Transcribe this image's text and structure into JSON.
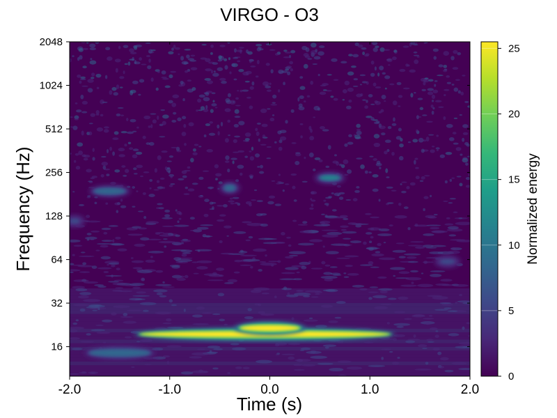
{
  "chart_data": {
    "type": "heatmap",
    "title": "VIRGO - O3",
    "xlabel": "Time (s)",
    "ylabel": "Frequency (Hz)",
    "xlim": [
      -2.0,
      2.0
    ],
    "x_ticks": [
      "-2.0",
      "-1.0",
      "0.0",
      "1.0",
      "2.0"
    ],
    "y_scale": "log2",
    "ylim": [
      10,
      2048
    ],
    "y_ticks": [
      "16",
      "32",
      "64",
      "128",
      "256",
      "512",
      "1024",
      "2048"
    ],
    "colormap": "viridis",
    "colorbar": {
      "label": "Normalized energy",
      "range": [
        0,
        25.5
      ],
      "ticks": [
        "0",
        "5",
        "10",
        "15",
        "20",
        "25"
      ]
    },
    "features": [
      {
        "t_start": -1.3,
        "t_end": 1.2,
        "f_center": 19.5,
        "peak_energy": 25.5,
        "shape": "horizontal band"
      },
      {
        "t_start": -0.3,
        "t_end": 0.3,
        "f_center": 21.5,
        "peak_energy": 25.5,
        "shape": "horizontal band"
      },
      {
        "t_start": -1.8,
        "t_end": -1.2,
        "f_center": 14.5,
        "peak_energy": 9,
        "shape": "horizontal band"
      },
      {
        "t_start": -1.75,
        "t_end": -1.45,
        "f_center": 190,
        "peak_energy": 9,
        "shape": "blob"
      },
      {
        "t_start": 0.5,
        "t_end": 0.7,
        "f_center": 235,
        "peak_energy": 10,
        "shape": "blob"
      },
      {
        "t_start": -0.45,
        "t_end": -0.35,
        "f_center": 200,
        "peak_energy": 8,
        "shape": "blob"
      },
      {
        "t_start": 1.7,
        "t_end": 1.85,
        "f_center": 62,
        "peak_energy": 6,
        "shape": "blob"
      },
      {
        "t_start": -2.0,
        "t_end": -1.9,
        "f_center": 118,
        "peak_energy": 6,
        "shape": "blob"
      }
    ]
  },
  "colors": {
    "viridis": [
      "#440154",
      "#482878",
      "#3e4989",
      "#31688e",
      "#26828e",
      "#1f9e89",
      "#35b779",
      "#6ece58",
      "#b5de2b",
      "#fde725"
    ]
  }
}
